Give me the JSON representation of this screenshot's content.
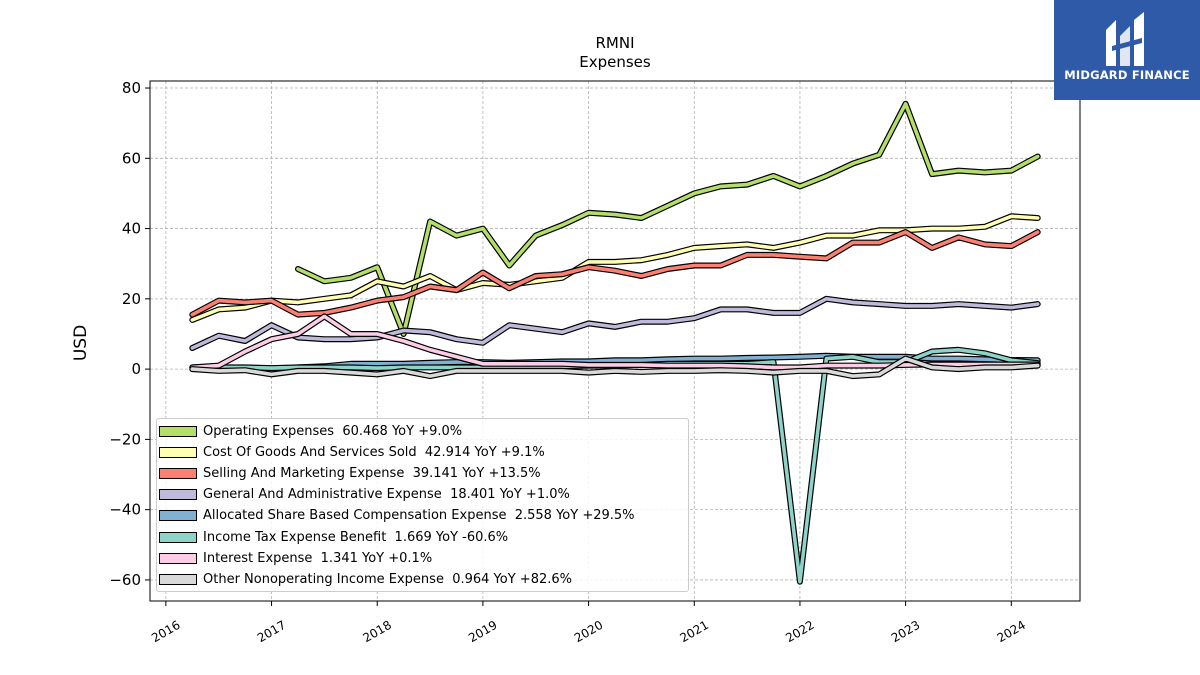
{
  "brand": {
    "name": "MIDGARD FINANCE",
    "logo_icon": "midgard-logo-icon",
    "background": "#2f5aa8"
  },
  "chart_data": {
    "type": "line",
    "title": "RMNI",
    "subtitle": "Expenses",
    "ylabel": "USD",
    "xlabel": "",
    "ylim": [
      -66,
      82
    ],
    "xlim": [
      2015.85,
      2024.65
    ],
    "yticks": [
      80,
      60,
      40,
      20,
      0,
      -20,
      -40,
      -60
    ],
    "ytick_labels": [
      "80",
      "60",
      "40",
      "20",
      "0",
      "−20",
      "−40",
      "−60"
    ],
    "xticks": [
      2016,
      2017,
      2018,
      2019,
      2020,
      2021,
      2022,
      2023,
      2024
    ],
    "xtick_labels": [
      "2016",
      "2017",
      "2018",
      "2019",
      "2020",
      "2021",
      "2022",
      "2023",
      "2024"
    ],
    "grid": true,
    "legend_position": "lower-left",
    "series": [
      {
        "name": "Operating Expenses",
        "legend_label": "Operating Expenses  60.468 YoY +9.0%",
        "color": "#b3de69",
        "x": [
          2017.25,
          2017.5,
          2017.75,
          2018.0,
          2018.25,
          2018.5,
          2018.75,
          2019.0,
          2019.25,
          2019.5,
          2019.75,
          2020.0,
          2020.25,
          2020.5,
          2020.75,
          2021.0,
          2021.25,
          2021.5,
          2021.75,
          2022.0,
          2022.25,
          2022.5,
          2022.75,
          2023.0,
          2023.25,
          2023.5,
          2023.75,
          2024.0,
          2024.25
        ],
        "y": [
          28.5,
          25,
          26,
          29,
          10,
          42,
          38,
          40,
          29.5,
          38,
          41,
          44.5,
          44,
          43,
          46.5,
          50,
          52,
          52.5,
          55,
          52,
          55,
          58.5,
          61,
          75.5,
          55.5,
          56.5,
          56,
          56.5,
          60.5
        ]
      },
      {
        "name": "Cost Of Goods And Services Sold",
        "legend_label": "Cost Of Goods And Services Sold  42.914 YoY +9.1%",
        "color": "#ffffb3",
        "x": [
          2016.25,
          2016.5,
          2016.75,
          2017.0,
          2017.25,
          2017.5,
          2017.75,
          2018.0,
          2018.25,
          2018.5,
          2018.75,
          2019.0,
          2019.25,
          2019.5,
          2019.75,
          2020.0,
          2020.25,
          2020.5,
          2020.75,
          2021.0,
          2021.25,
          2021.5,
          2021.75,
          2022.0,
          2022.25,
          2022.5,
          2022.75,
          2023.0,
          2023.25,
          2023.5,
          2023.75,
          2024.0,
          2024.25
        ],
        "y": [
          14,
          17,
          17.5,
          19.5,
          19,
          20,
          21,
          25,
          23.5,
          26.5,
          22.5,
          24.5,
          24,
          25,
          26,
          30.5,
          30.5,
          31,
          32.5,
          34.5,
          35,
          35.5,
          34.5,
          36,
          38,
          38,
          39.5,
          39.5,
          40,
          40,
          40.5,
          43.5,
          43
        ]
      },
      {
        "name": "Selling And Marketing Expense",
        "legend_label": "Selling And Marketing Expense  39.141 YoY +13.5%",
        "color": "#fb8072",
        "x": [
          2016.25,
          2016.5,
          2016.75,
          2017.0,
          2017.25,
          2017.5,
          2017.75,
          2018.0,
          2018.25,
          2018.5,
          2018.75,
          2019.0,
          2019.25,
          2019.5,
          2019.75,
          2020.0,
          2020.25,
          2020.5,
          2020.75,
          2021.0,
          2021.25,
          2021.5,
          2021.75,
          2022.0,
          2022.25,
          2022.5,
          2022.75,
          2023.0,
          2023.25,
          2023.5,
          2023.75,
          2024.0,
          2024.25
        ],
        "y": [
          15.5,
          19.5,
          19,
          19.5,
          15.5,
          16,
          17.5,
          19.5,
          20.5,
          23.5,
          22.5,
          27.5,
          23,
          26.5,
          27,
          29,
          28,
          26.5,
          28.5,
          29.5,
          29.5,
          32.5,
          32.5,
          32,
          31.5,
          36,
          36,
          39,
          34.5,
          37.5,
          35.5,
          35,
          39
        ]
      },
      {
        "name": "General And Administrative Expense",
        "legend_label": "General And Administrative Expense  18.401 YoY +1.0%",
        "color": "#bebada",
        "x": [
          2016.25,
          2016.5,
          2016.75,
          2017.0,
          2017.25,
          2017.5,
          2017.75,
          2018.0,
          2018.25,
          2018.5,
          2018.75,
          2019.0,
          2019.25,
          2019.5,
          2019.75,
          2020.0,
          2020.25,
          2020.5,
          2020.75,
          2021.0,
          2021.25,
          2021.5,
          2021.75,
          2022.0,
          2022.25,
          2022.5,
          2022.75,
          2023.0,
          2023.25,
          2023.5,
          2023.75,
          2024.0,
          2024.25
        ],
        "y": [
          6,
          9.5,
          8,
          12.5,
          9,
          8.5,
          8.5,
          9,
          11,
          10.5,
          8.5,
          7.5,
          12.5,
          11.5,
          10.5,
          13,
          12,
          13.5,
          13.5,
          14.5,
          17,
          17,
          16,
          16,
          20,
          19,
          18.5,
          18,
          18,
          18.5,
          18,
          17.5,
          18.5
        ]
      },
      {
        "name": "Allocated Share Based Compensation Expense",
        "legend_label": "Allocated Share Based Compensation Expense  2.558 YoY +29.5%",
        "color": "#80b1d3",
        "x": [
          2017.25,
          2017.5,
          2017.75,
          2018.0,
          2018.25,
          2018.5,
          2018.75,
          2019.0,
          2019.25,
          2019.5,
          2019.75,
          2020.0,
          2020.25,
          2020.5,
          2020.75,
          2021.0,
          2021.25,
          2021.5,
          2021.75,
          2022.0,
          2022.25,
          2022.5,
          2022.75,
          2023.0,
          2023.25,
          2023.5,
          2023.75,
          2024.0,
          2024.25
        ],
        "y": [
          0.5,
          0.8,
          1.5,
          1.5,
          1.5,
          1.8,
          2,
          2,
          1.8,
          2,
          2.2,
          2.2,
          2.5,
          2.5,
          2.8,
          3,
          3,
          3.2,
          3.3,
          3.5,
          3.8,
          3.5,
          3.5,
          3.5,
          3,
          3,
          2.8,
          2.6,
          2.5
        ]
      },
      {
        "name": "Income Tax Expense Benefit",
        "legend_label": "Income Tax Expense Benefit  1.669 YoY -60.6%",
        "color": "#8dd3c7",
        "x": [
          2016.25,
          2016.5,
          2016.75,
          2017.0,
          2017.25,
          2017.5,
          2017.75,
          2018.0,
          2018.25,
          2018.5,
          2018.75,
          2019.0,
          2019.25,
          2019.5,
          2019.75,
          2020.0,
          2020.25,
          2020.5,
          2020.75,
          2021.0,
          2021.25,
          2021.5,
          2021.75,
          2022.0,
          2022.25,
          2022.5,
          2022.75,
          2023.0,
          2023.25,
          2023.5,
          2023.75,
          2024.0,
          2024.25
        ],
        "y": [
          0.5,
          0.5,
          0.5,
          0.3,
          0.5,
          0.5,
          0.5,
          0.3,
          0.5,
          0.5,
          0.5,
          0.5,
          0.5,
          0.5,
          0.8,
          1,
          1,
          1.2,
          1.5,
          1.5,
          1.5,
          1.5,
          2,
          -60.5,
          3,
          3.5,
          2,
          2,
          5,
          5.5,
          4.5,
          2.5,
          1.7
        ]
      },
      {
        "name": "Interest Expense",
        "legend_label": "Interest Expense  1.341 YoY +0.1%",
        "color": "#fccde5",
        "x": [
          2016.25,
          2016.5,
          2016.75,
          2017.0,
          2017.25,
          2017.5,
          2017.75,
          2018.0,
          2018.25,
          2018.5,
          2018.75,
          2019.0,
          2019.25,
          2019.5,
          2019.75,
          2020.0,
          2020.25,
          2020.5,
          2020.75,
          2021.0,
          2021.25,
          2021.5,
          2021.75,
          2022.0,
          2022.25,
          2022.5,
          2022.75,
          2023.0,
          2023.25,
          2023.5,
          2023.75,
          2024.0,
          2024.25
        ],
        "y": [
          0.5,
          1,
          5,
          8.5,
          10,
          15,
          10,
          10,
          8,
          5.5,
          3.5,
          1.5,
          1.5,
          1.5,
          1.5,
          1.2,
          1.2,
          1.2,
          1,
          1,
          1,
          0.8,
          0.5,
          0.5,
          1,
          1,
          1,
          1.2,
          1.3,
          1.3,
          1.3,
          1.3,
          1.3
        ]
      },
      {
        "name": "Other Nonoperating Income Expense",
        "legend_label": "Other Nonoperating Income Expense  0.964 YoY +82.6%",
        "color": "#d9d9d9",
        "x": [
          2016.25,
          2016.5,
          2016.75,
          2017.0,
          2017.25,
          2017.5,
          2017.75,
          2018.0,
          2018.25,
          2018.5,
          2018.75,
          2019.0,
          2019.25,
          2019.5,
          2019.75,
          2020.0,
          2020.25,
          2020.5,
          2020.75,
          2021.0,
          2021.25,
          2021.5,
          2021.75,
          2022.0,
          2022.25,
          2022.5,
          2022.75,
          2023.0,
          2023.25,
          2023.5,
          2023.75,
          2024.0,
          2024.25
        ],
        "y": [
          0,
          -0.5,
          -0.3,
          -1.5,
          -0.5,
          -0.5,
          -1,
          -1.5,
          -0.5,
          -2,
          -0.5,
          -0.5,
          -0.5,
          -0.5,
          -0.5,
          -1,
          -0.5,
          -0.8,
          -0.5,
          -0.5,
          -0.3,
          -0.5,
          -1,
          -0.5,
          -0.5,
          -2,
          -1.5,
          3,
          0.5,
          0,
          0.5,
          0.5,
          1
        ]
      }
    ]
  }
}
